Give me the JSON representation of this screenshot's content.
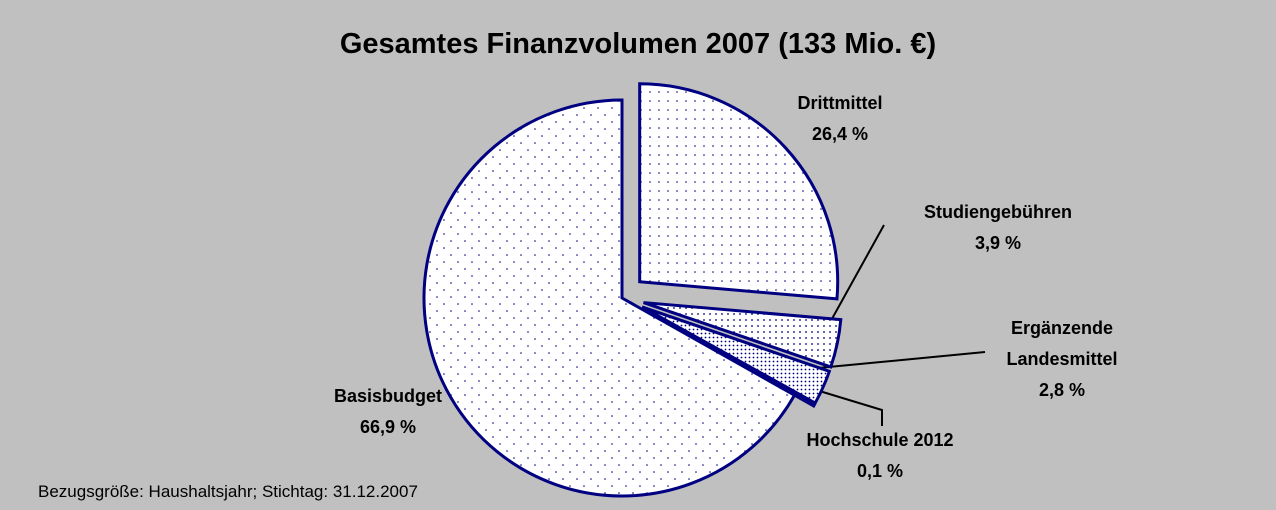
{
  "chart_data": {
    "type": "pie",
    "title": "Gesamtes Finanzvolumen 2007 (133 Mio. €)",
    "categories": [
      "Drittmittel",
      "Studiengebühren",
      "Ergänzende Landesmittel",
      "Hochschule 2012",
      "Basisbudget"
    ],
    "values": [
      26.4,
      3.9,
      2.8,
      0.1,
      66.9
    ],
    "value_labels": [
      "26,4 %",
      "3,9 %",
      "2,8 %",
      "0,1 %",
      "66,9 %"
    ],
    "color": "#000080",
    "note": "Bezugsgröße: Haushaltsjahr; Stichtag: 31.12.2007"
  }
}
